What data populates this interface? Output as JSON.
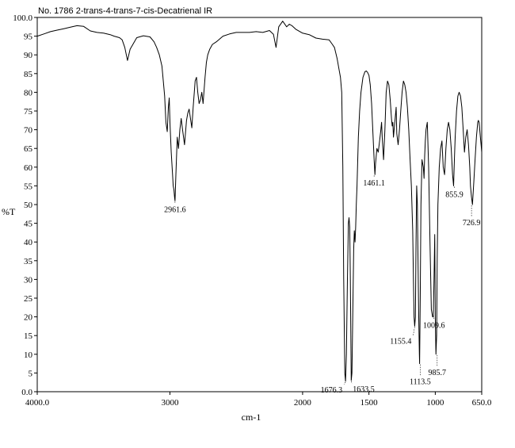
{
  "chart_data": {
    "type": "line",
    "title": "No. 1786 2-trans-4-trans-7-cis-Decatrienal IR",
    "xlabel": "cm-1",
    "ylabel": "%T",
    "xlim": [
      4000.0,
      650.0
    ],
    "ylim": [
      0.0,
      100.0
    ],
    "x_ticks": [
      {
        "value": 4000,
        "label": "4000.0"
      },
      {
        "value": 3000,
        "label": "3000"
      },
      {
        "value": 2000,
        "label": "2000"
      },
      {
        "value": 1500,
        "label": "1500"
      },
      {
        "value": 1000,
        "label": "1000"
      },
      {
        "value": 650,
        "label": "650.0"
      }
    ],
    "y_ticks": [
      {
        "value": 0,
        "label": "0.0"
      },
      {
        "value": 5,
        "label": "5"
      },
      {
        "value": 10,
        "label": "10"
      },
      {
        "value": 15,
        "label": "15"
      },
      {
        "value": 20,
        "label": "20"
      },
      {
        "value": 25,
        "label": "25"
      },
      {
        "value": 30,
        "label": "30"
      },
      {
        "value": 35,
        "label": "35"
      },
      {
        "value": 40,
        "label": "40"
      },
      {
        "value": 45,
        "label": "45"
      },
      {
        "value": 50,
        "label": "50"
      },
      {
        "value": 55,
        "label": "55"
      },
      {
        "value": 60,
        "label": "60"
      },
      {
        "value": 65,
        "label": "65"
      },
      {
        "value": 70,
        "label": "70"
      },
      {
        "value": 75,
        "label": "75"
      },
      {
        "value": 80,
        "label": "80"
      },
      {
        "value": 85,
        "label": "85"
      },
      {
        "value": 90,
        "label": "90"
      },
      {
        "value": 95,
        "label": "95"
      },
      {
        "value": 100,
        "label": "100.0"
      }
    ],
    "grid": false,
    "series": [
      {
        "x": [
          4000,
          3950,
          3900,
          3850,
          3800,
          3750,
          3700,
          3650,
          3600,
          3550,
          3500,
          3450,
          3420,
          3380,
          3360,
          3340,
          3320,
          3300,
          3250,
          3200,
          3150,
          3120,
          3100,
          3080,
          3060,
          3050,
          3040,
          3030,
          3020,
          3012,
          3005,
          3000,
          2990,
          2980,
          2975,
          2970,
          2965,
          2961.6,
          2955,
          2945,
          2935,
          2925,
          2915,
          2905,
          2890,
          2875,
          2865,
          2855,
          2845,
          2835,
          2825,
          2810,
          2800,
          2790,
          2780,
          2770,
          2760,
          2750,
          2735,
          2725,
          2715,
          2700,
          2680,
          2650,
          2600,
          2550,
          2500,
          2450,
          2400,
          2350,
          2300,
          2250,
          2220,
          2200,
          2180,
          2150,
          2120,
          2100,
          2080,
          2050,
          2000,
          1950,
          1900,
          1850,
          1800,
          1780,
          1760,
          1740,
          1725,
          1715,
          1705,
          1697,
          1690,
          1682,
          1676.3,
          1670,
          1662,
          1655,
          1650,
          1645,
          1640,
          1633.5,
          1628,
          1622,
          1615,
          1610,
          1605,
          1600,
          1595,
          1590,
          1580,
          1570,
          1560,
          1545,
          1530,
          1520,
          1510,
          1500,
          1490,
          1480,
          1470,
          1461.1,
          1455,
          1450,
          1440,
          1430,
          1420,
          1410,
          1405,
          1400,
          1390,
          1380,
          1370,
          1360,
          1350,
          1340,
          1330,
          1325,
          1320,
          1315,
          1305,
          1295,
          1290,
          1280,
          1270,
          1260,
          1250,
          1240,
          1230,
          1220,
          1210,
          1200,
          1190,
          1180,
          1170,
          1165,
          1160,
          1155.4,
          1150,
          1145,
          1140,
          1135,
          1130,
          1125,
          1120,
          1118,
          1113.5,
          1108,
          1100,
          1090,
          1085,
          1080,
          1075,
          1070,
          1060,
          1050,
          1040,
          1030,
          1020,
          1015,
          1009.6,
          1004,
          1000,
          995,
          990,
          985.7,
          980,
          970,
          960,
          950,
          940,
          930,
          920,
          910,
          900,
          890,
          880,
          870,
          862,
          855.9,
          850,
          840,
          830,
          820,
          810,
          800,
          790,
          780,
          770,
          760,
          750,
          740,
          735,
          726.9,
          720,
          710,
          700,
          690,
          680,
          675,
          670,
          665,
          660,
          655,
          650
        ],
        "y": [
          95.0,
          95.6,
          96.2,
          96.6,
          97.0,
          97.4,
          97.8,
          97.6,
          96.4,
          96.0,
          95.8,
          95.4,
          95.0,
          94.6,
          94.0,
          92.0,
          88.5,
          91.5,
          94.6,
          95.1,
          94.8,
          93.5,
          92.0,
          90.0,
          87.0,
          83.0,
          79.0,
          72.0,
          69.5,
          76.0,
          78.5,
          72.0,
          64.0,
          58.0,
          55.0,
          54.0,
          52.0,
          51.0,
          58.0,
          68.0,
          65.0,
          70.0,
          73.0,
          70.0,
          66.0,
          72.5,
          74.5,
          75.5,
          73.0,
          70.5,
          76.0,
          83.0,
          84.0,
          80.0,
          77.0,
          78.0,
          80.0,
          77.0,
          84.0,
          88.0,
          90.0,
          91.5,
          92.8,
          93.5,
          95.0,
          95.6,
          96.0,
          96.0,
          96.0,
          96.2,
          96.0,
          96.5,
          95.5,
          92.0,
          97.5,
          99.0,
          97.5,
          98.2,
          97.8,
          96.8,
          95.8,
          95.4,
          94.5,
          94.2,
          94.0,
          93.0,
          92.0,
          89.0,
          86.0,
          84.0,
          80.0,
          60.0,
          30.0,
          5.0,
          2.8,
          10.0,
          30.0,
          45.0,
          46.5,
          44.0,
          30.0,
          3.0,
          5.0,
          20.0,
          38.0,
          43.0,
          40.0,
          44.0,
          50.0,
          55.0,
          68.0,
          75.0,
          80.0,
          84.0,
          85.5,
          85.7,
          85.3,
          84.5,
          82.0,
          77.0,
          69.0,
          62.0,
          58.0,
          61.0,
          65.0,
          64.0,
          67.0,
          70.0,
          72.0,
          68.0,
          62.0,
          70.0,
          80.0,
          83.0,
          82.0,
          78.0,
          73.0,
          71.0,
          72.0,
          68.0,
          72.0,
          76.0,
          69.0,
          66.0,
          70.0,
          75.0,
          80.0,
          83.0,
          82.0,
          80.0,
          76.0,
          70.0,
          62.0,
          55.0,
          43.0,
          30.0,
          20.0,
          17.5,
          20.0,
          40.0,
          55.0,
          50.0,
          35.0,
          20.0,
          10.0,
          7.5,
          25.0,
          50.0,
          62.0,
          60.0,
          57.0,
          63.0,
          67.0,
          70.0,
          72.0,
          60.0,
          40.0,
          22.0,
          20.0,
          20.0,
          30.0,
          42.0,
          20.0,
          10.0,
          15.0,
          35.0,
          50.0,
          60.0,
          65.0,
          67.0,
          60.0,
          58.0,
          65.0,
          70.0,
          72.0,
          70.0,
          65.0,
          58.0,
          55.0,
          62.0,
          68.0,
          75.0,
          79.0,
          80.0,
          79.0,
          76.0,
          70.0,
          64.0,
          68.0,
          70.0,
          66.0,
          60.0,
          55.0,
          52.0,
          50.0,
          56.0,
          62.0,
          68.0,
          72.0,
          72.5,
          72.0,
          70.0,
          68.0,
          66.0,
          64.0
        ]
      }
    ],
    "peak_labels": [
      {
        "x": 2961.6,
        "y": 51.0,
        "text": "2961.6"
      },
      {
        "x": 1676.3,
        "y": 2.8,
        "text": "1676.3"
      },
      {
        "x": 1633.5,
        "y": 3.0,
        "text": "1633.5"
      },
      {
        "x": 1461.1,
        "y": 58.0,
        "text": "1461.1"
      },
      {
        "x": 1155.4,
        "y": 17.5,
        "text": "1155.4"
      },
      {
        "x": 1113.5,
        "y": 7.5,
        "text": "1113.5"
      },
      {
        "x": 1009.6,
        "y": 20.0,
        "text": "1009.6"
      },
      {
        "x": 985.7,
        "y": 10.0,
        "text": "985.7"
      },
      {
        "x": 855.9,
        "y": 55.0,
        "text": "855.9"
      },
      {
        "x": 726.9,
        "y": 50.0,
        "text": "726.9"
      }
    ]
  }
}
